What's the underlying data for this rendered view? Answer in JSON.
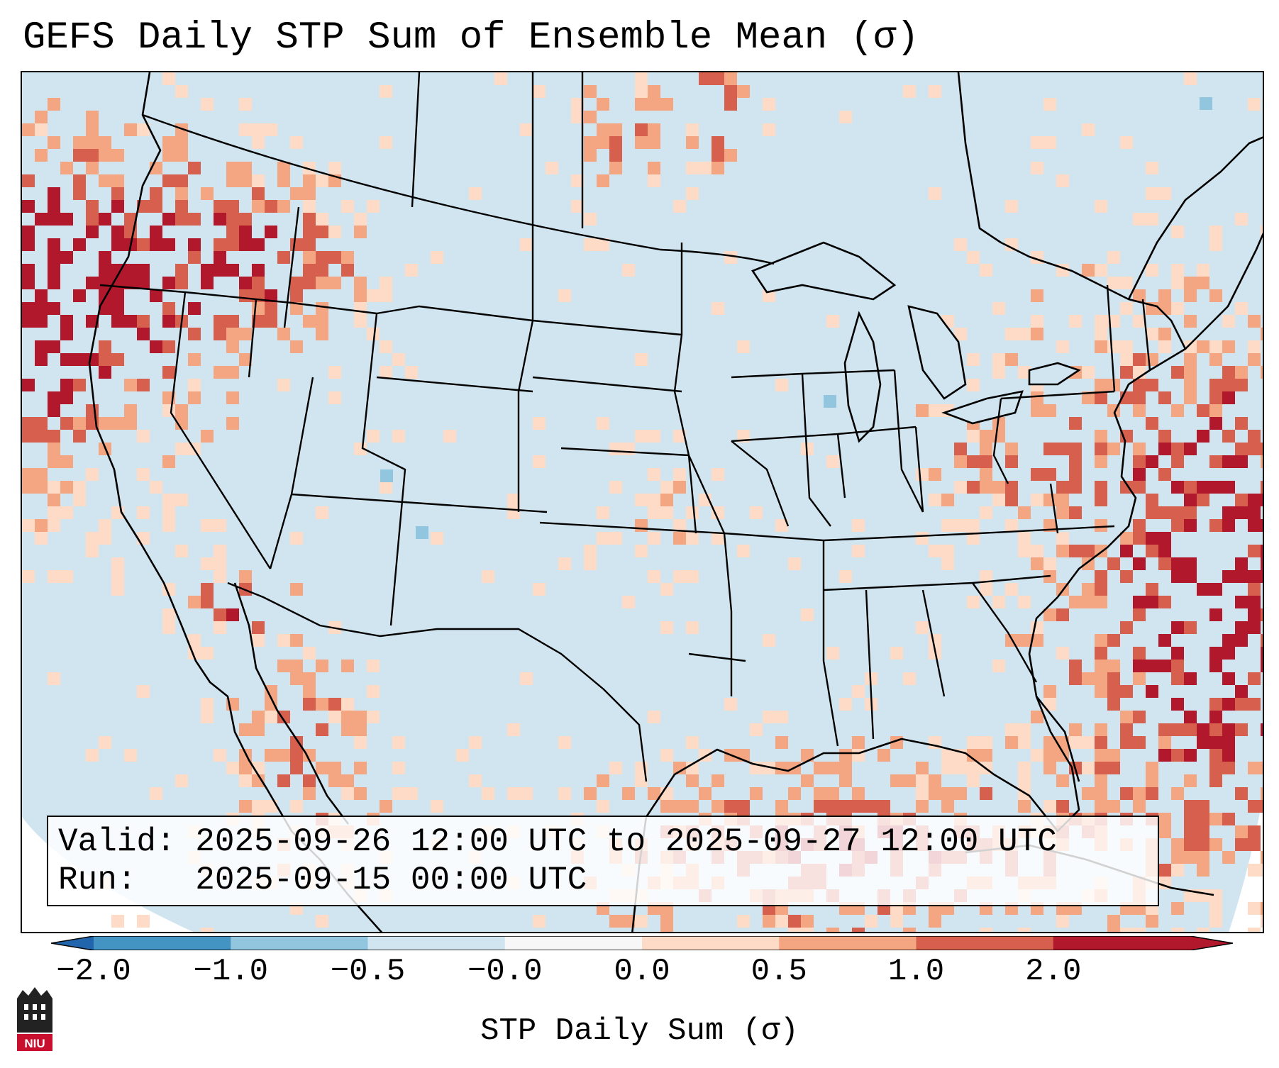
{
  "title": "GEFS Daily STP Sum of Ensemble Mean (σ)",
  "info": {
    "valid_line": "Valid: 2025-09-26 12:00 UTC to 2025-09-27 12:00 UTC",
    "run_line": "Run:   2025-09-15 00:00 UTC"
  },
  "colorbar": {
    "label": "STP Daily Sum (σ)",
    "ticks": [
      "−2.0",
      "−1.0",
      "−0.5",
      "−0.0",
      "0.0",
      "0.5",
      "1.0",
      "2.0"
    ],
    "colors": [
      "#4393c3",
      "#92c5de",
      "#d1e5f0",
      "#f7f7f7",
      "#fddbc7",
      "#f4a582",
      "#d6604d",
      "#b2182b"
    ],
    "under_color": "#2166ac",
    "over_color": "#b2182b"
  },
  "map": {
    "background_color": "#d1e5f0",
    "outside_color": "#ffffff"
  },
  "logo": {
    "text": "NIU",
    "color": "#c8102e"
  }
}
